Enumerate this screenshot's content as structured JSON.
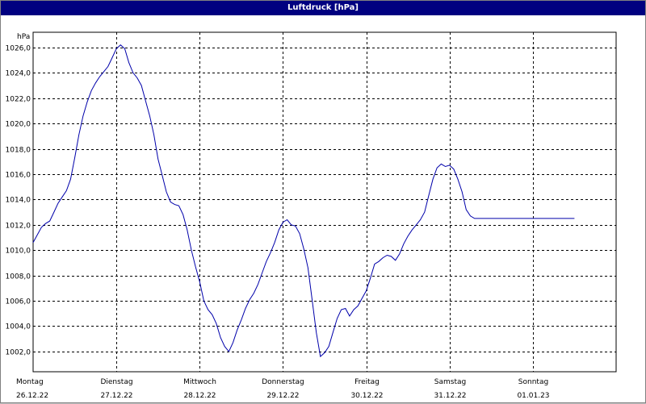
{
  "window": {
    "title": "Luftdruck [hPa]"
  },
  "chart_data": {
    "type": "line",
    "title": "Luftdruck [hPa]",
    "ylabel": "hPa",
    "xlabel": "",
    "ylim": [
      1000.4,
      1027.2
    ],
    "grid": true,
    "y_ticks": [
      {
        "value": 1002,
        "label": "1002,0"
      },
      {
        "value": 1004,
        "label": "1004,0"
      },
      {
        "value": 1006,
        "label": "1006,0"
      },
      {
        "value": 1008,
        "label": "1008,0"
      },
      {
        "value": 1010,
        "label": "1010,0"
      },
      {
        "value": 1012,
        "label": "1012,0"
      },
      {
        "value": 1014,
        "label": "1014,0"
      },
      {
        "value": 1016,
        "label": "1016,0"
      },
      {
        "value": 1018,
        "label": "1018,0"
      },
      {
        "value": 1020,
        "label": "1020,0"
      },
      {
        "value": 1022,
        "label": "1022,0"
      },
      {
        "value": 1024,
        "label": "1024,0"
      },
      {
        "value": 1026,
        "label": "1026,0"
      }
    ],
    "x_ticks": [
      {
        "day": "Montag",
        "date": "26.12.22"
      },
      {
        "day": "Dienstag",
        "date": "27.12.22"
      },
      {
        "day": "Mittwoch",
        "date": "28.12.22"
      },
      {
        "day": "Donnerstag",
        "date": "29.12.22"
      },
      {
        "day": "Freitag",
        "date": "30.12.22"
      },
      {
        "day": "Samstag",
        "date": "31.12.22"
      },
      {
        "day": "Sonntag",
        "date": "01.01.23"
      }
    ],
    "xlim": [
      0,
      7
    ],
    "series": [
      {
        "color": "#0000aa",
        "x": [
          0.0,
          0.05,
          0.1,
          0.15,
          0.2,
          0.25,
          0.3,
          0.35,
          0.4,
          0.45,
          0.5,
          0.55,
          0.6,
          0.65,
          0.7,
          0.75,
          0.8,
          0.85,
          0.9,
          0.95,
          1.0,
          1.05,
          1.1,
          1.15,
          1.2,
          1.25,
          1.3,
          1.35,
          1.4,
          1.45,
          1.5,
          1.55,
          1.6,
          1.65,
          1.7,
          1.75,
          1.8,
          1.85,
          1.9,
          1.95,
          2.0,
          2.05,
          2.1,
          2.15,
          2.2,
          2.25,
          2.3,
          2.35,
          2.4,
          2.45,
          2.5,
          2.55,
          2.6,
          2.65,
          2.7,
          2.75,
          2.8,
          2.85,
          2.9,
          2.95,
          3.0,
          3.05,
          3.1,
          3.15,
          3.2,
          3.25,
          3.3,
          3.35,
          3.4,
          3.45,
          3.5,
          3.55,
          3.6,
          3.65,
          3.7,
          3.75,
          3.8,
          3.85,
          3.9,
          3.95,
          4.0,
          4.05,
          4.1,
          4.15,
          4.2,
          4.25,
          4.3,
          4.35,
          4.4,
          4.45,
          4.5,
          4.55,
          4.6,
          4.65,
          4.7,
          4.75,
          4.8,
          4.85,
          4.9,
          4.95,
          5.0,
          5.05,
          5.1,
          5.15,
          5.2,
          5.25,
          5.3,
          5.35,
          5.4,
          5.45,
          5.5,
          5.55,
          5.6,
          5.65,
          5.7,
          5.75,
          5.8,
          5.85,
          5.9,
          5.95,
          6.0,
          6.05,
          6.1,
          6.15,
          6.2,
          6.25,
          6.3,
          6.35,
          6.4,
          6.45,
          6.5,
          6.55,
          6.6,
          6.65,
          6.7,
          6.75,
          6.8,
          6.85,
          6.9,
          6.95,
          7.0
        ],
        "values": [
          1010.6,
          1011.2,
          1011.8,
          1012.1,
          1012.3,
          1013.0,
          1013.7,
          1014.2,
          1014.7,
          1015.6,
          1017.3,
          1019.1,
          1020.6,
          1021.7,
          1022.6,
          1023.2,
          1023.7,
          1024.1,
          1024.5,
          1025.2,
          1025.9,
          1026.2,
          1025.9,
          1024.8,
          1024.0,
          1023.6,
          1023.0,
          1021.8,
          1020.6,
          1019.1,
          1017.2,
          1015.9,
          1014.6,
          1013.8,
          1013.6,
          1013.5,
          1012.8,
          1011.6,
          1010.0,
          1008.7,
          1007.5,
          1006.0,
          1005.3,
          1004.9,
          1004.2,
          1003.1,
          1002.4,
          1002.0,
          1002.7,
          1003.7,
          1004.5,
          1005.4,
          1006.1,
          1006.6,
          1007.3,
          1008.2,
          1009.1,
          1009.8,
          1010.6,
          1011.6,
          1012.2,
          1012.4,
          1012.0,
          1011.9,
          1011.3,
          1010.1,
          1008.6,
          1006.1,
          1003.5,
          1001.6,
          1001.9,
          1002.4,
          1003.5,
          1004.6,
          1005.3,
          1005.4,
          1004.8,
          1005.3,
          1005.6,
          1006.2,
          1006.8,
          1007.8,
          1008.9,
          1009.1,
          1009.4,
          1009.6,
          1009.5,
          1009.2,
          1009.7,
          1010.5,
          1011.1,
          1011.6,
          1012.0,
          1012.4,
          1013.0,
          1014.3,
          1015.6,
          1016.5,
          1016.8,
          1016.6,
          1016.7,
          1016.4,
          1015.6,
          1014.6,
          1013.2,
          1012.7,
          1012.5,
          1012.5,
          1012.5,
          1012.5,
          1012.5,
          1012.5,
          1012.5,
          1012.5,
          1012.5,
          1012.5,
          1012.5,
          1012.5,
          1012.5,
          1012.5,
          1012.5,
          1012.5,
          1012.5,
          1012.5,
          1012.5,
          1012.5,
          1012.5,
          1012.5,
          1012.5,
          1012.5,
          1012.5,
          1012.5,
          1012.5,
          1012.5,
          1012.5,
          1012.5,
          1012.5,
          1012.5,
          1012.5,
          1012.5,
          1012.5
        ]
      }
    ]
  }
}
